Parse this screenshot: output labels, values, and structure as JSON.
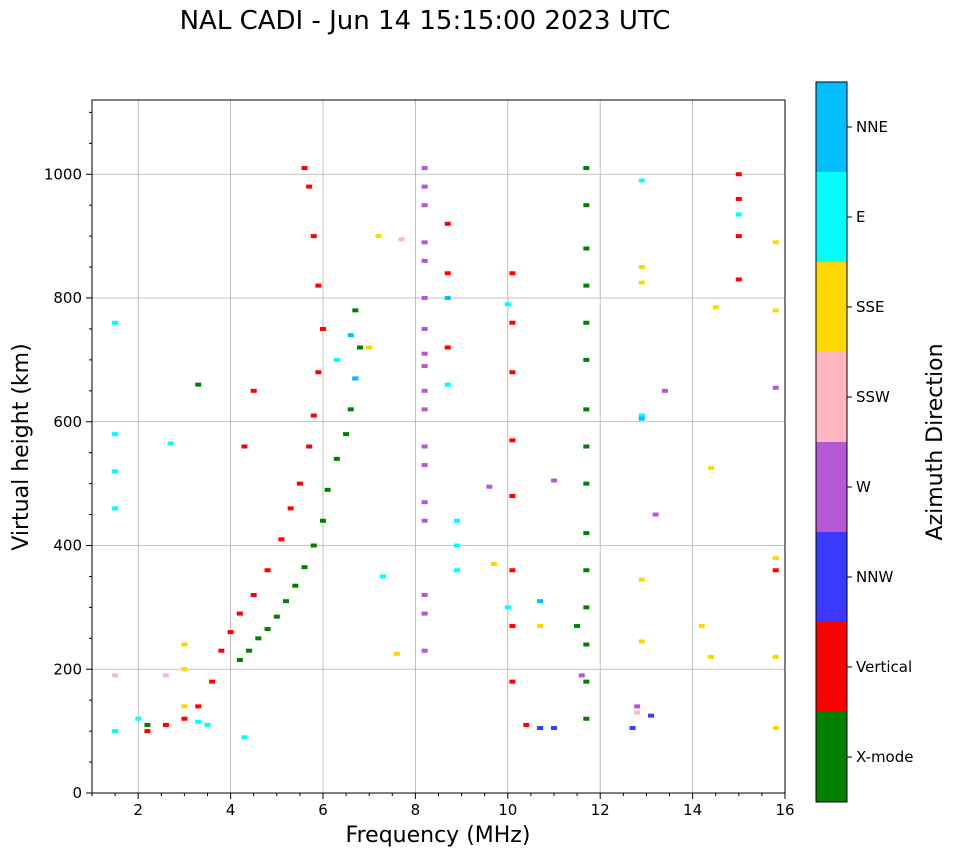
{
  "chart_data": {
    "type": "scatter",
    "title": "NAL CADI - Jun 14 15:15:00 2023 UTC",
    "xlabel": "Frequency (MHz)",
    "ylabel": "Virtual height (km)",
    "xlim": [
      1.0,
      16.0
    ],
    "ylim": [
      0,
      1120
    ],
    "xticks": [
      2,
      4,
      6,
      8,
      10,
      12,
      14,
      16
    ],
    "yticks": [
      0,
      200,
      400,
      600,
      800,
      1000
    ],
    "grid": true,
    "colorbar": {
      "label": "Azimuth Direction",
      "categories": [
        {
          "name": "X-mode",
          "color": "#008000"
        },
        {
          "name": "Vertical",
          "color": "#ff0000"
        },
        {
          "name": "NNW",
          "color": "#3a3aff"
        },
        {
          "name": "W",
          "color": "#b657d6"
        },
        {
          "name": "SSW",
          "color": "#ffb6c1"
        },
        {
          "name": "SSE",
          "color": "#ffd700"
        },
        {
          "name": "E",
          "color": "#00ffff"
        },
        {
          "name": "NNE",
          "color": "#00bfff"
        }
      ]
    },
    "series": [
      {
        "name": "X-mode",
        "points": [
          [
            4.2,
            215
          ],
          [
            4.4,
            230
          ],
          [
            4.6,
            250
          ],
          [
            4.8,
            265
          ],
          [
            5.0,
            285
          ],
          [
            5.2,
            310
          ],
          [
            5.4,
            335
          ],
          [
            5.6,
            365
          ],
          [
            5.8,
            400
          ],
          [
            6.0,
            440
          ],
          [
            6.1,
            490
          ],
          [
            6.3,
            540
          ],
          [
            6.5,
            580
          ],
          [
            6.6,
            620
          ],
          [
            6.7,
            670
          ],
          [
            6.8,
            720
          ],
          [
            6.7,
            780
          ],
          [
            2.2,
            110
          ],
          [
            3.3,
            660
          ],
          [
            11.7,
            120
          ],
          [
            11.7,
            180
          ],
          [
            11.7,
            240
          ],
          [
            11.7,
            300
          ],
          [
            11.7,
            360
          ],
          [
            11.7,
            420
          ],
          [
            11.7,
            500
          ],
          [
            11.7,
            560
          ],
          [
            11.7,
            620
          ],
          [
            11.7,
            700
          ],
          [
            11.7,
            760
          ],
          [
            11.7,
            820
          ],
          [
            11.7,
            880
          ],
          [
            11.7,
            950
          ],
          [
            11.7,
            1010
          ],
          [
            11.5,
            270
          ]
        ]
      },
      {
        "name": "Vertical",
        "points": [
          [
            2.2,
            100
          ],
          [
            2.6,
            110
          ],
          [
            3.0,
            120
          ],
          [
            3.3,
            140
          ],
          [
            3.6,
            180
          ],
          [
            3.8,
            230
          ],
          [
            4.0,
            260
          ],
          [
            4.2,
            290
          ],
          [
            4.5,
            320
          ],
          [
            4.8,
            360
          ],
          [
            5.1,
            410
          ],
          [
            5.3,
            460
          ],
          [
            5.5,
            500
          ],
          [
            5.7,
            560
          ],
          [
            5.8,
            610
          ],
          [
            5.9,
            680
          ],
          [
            6.0,
            750
          ],
          [
            5.9,
            820
          ],
          [
            5.8,
            900
          ],
          [
            5.7,
            980
          ],
          [
            5.6,
            1010
          ],
          [
            8.7,
            720
          ],
          [
            8.7,
            840
          ],
          [
            8.7,
            920
          ],
          [
            10.1,
            180
          ],
          [
            10.1,
            270
          ],
          [
            10.1,
            360
          ],
          [
            10.1,
            480
          ],
          [
            10.1,
            570
          ],
          [
            10.1,
            680
          ],
          [
            10.1,
            760
          ],
          [
            10.1,
            840
          ],
          [
            10.4,
            110
          ],
          [
            15.0,
            830
          ],
          [
            15.0,
            900
          ],
          [
            15.0,
            960
          ],
          [
            15.0,
            1000
          ],
          [
            15.8,
            360
          ],
          [
            4.3,
            560
          ],
          [
            4.5,
            650
          ]
        ]
      },
      {
        "name": "NNW",
        "points": [
          [
            12.7,
            105
          ],
          [
            13.1,
            125
          ],
          [
            10.7,
            105
          ],
          [
            11.0,
            105
          ]
        ]
      },
      {
        "name": "W",
        "points": [
          [
            8.2,
            230
          ],
          [
            8.2,
            290
          ],
          [
            8.2,
            320
          ],
          [
            8.2,
            440
          ],
          [
            8.2,
            470
          ],
          [
            8.2,
            530
          ],
          [
            8.2,
            560
          ],
          [
            8.2,
            620
          ],
          [
            8.2,
            650
          ],
          [
            8.2,
            690
          ],
          [
            8.2,
            710
          ],
          [
            8.2,
            750
          ],
          [
            8.2,
            800
          ],
          [
            8.2,
            860
          ],
          [
            8.2,
            890
          ],
          [
            8.2,
            950
          ],
          [
            8.2,
            980
          ],
          [
            8.2,
            1010
          ],
          [
            13.2,
            450
          ],
          [
            13.4,
            650
          ],
          [
            15.8,
            655
          ],
          [
            12.8,
            140
          ],
          [
            11.6,
            190
          ],
          [
            9.6,
            495
          ],
          [
            11.0,
            505
          ]
        ]
      },
      {
        "name": "SSW",
        "points": [
          [
            2.6,
            190
          ],
          [
            1.5,
            190
          ],
          [
            7.7,
            895
          ],
          [
            12.8,
            130
          ]
        ]
      },
      {
        "name": "SSE",
        "points": [
          [
            3.0,
            140
          ],
          [
            3.0,
            200
          ],
          [
            3.0,
            240
          ],
          [
            7.0,
            720
          ],
          [
            7.2,
            900
          ],
          [
            12.9,
            245
          ],
          [
            12.9,
            345
          ],
          [
            12.9,
            825
          ],
          [
            12.9,
            850
          ],
          [
            14.2,
            270
          ],
          [
            14.4,
            220
          ],
          [
            14.4,
            525
          ],
          [
            14.5,
            785
          ],
          [
            15.8,
            105
          ],
          [
            15.8,
            220
          ],
          [
            15.8,
            380
          ],
          [
            15.8,
            780
          ],
          [
            15.8,
            890
          ],
          [
            10.7,
            270
          ],
          [
            7.6,
            225
          ],
          [
            9.7,
            370
          ]
        ]
      },
      {
        "name": "E",
        "points": [
          [
            1.5,
            100
          ],
          [
            1.5,
            460
          ],
          [
            1.5,
            520
          ],
          [
            1.5,
            580
          ],
          [
            1.5,
            760
          ],
          [
            2.0,
            120
          ],
          [
            3.3,
            115
          ],
          [
            3.5,
            110
          ],
          [
            4.3,
            90
          ],
          [
            7.3,
            350
          ],
          [
            8.7,
            660
          ],
          [
            8.9,
            360
          ],
          [
            8.9,
            400
          ],
          [
            8.9,
            440
          ],
          [
            10.0,
            300
          ],
          [
            10.0,
            790
          ],
          [
            12.9,
            610
          ],
          [
            12.9,
            990
          ],
          [
            15.0,
            935
          ],
          [
            2.7,
            565
          ],
          [
            6.3,
            700
          ]
        ]
      },
      {
        "name": "NNE",
        "points": [
          [
            6.6,
            740
          ],
          [
            6.7,
            670
          ],
          [
            8.7,
            800
          ],
          [
            10.7,
            310
          ],
          [
            12.9,
            605
          ]
        ]
      }
    ]
  }
}
